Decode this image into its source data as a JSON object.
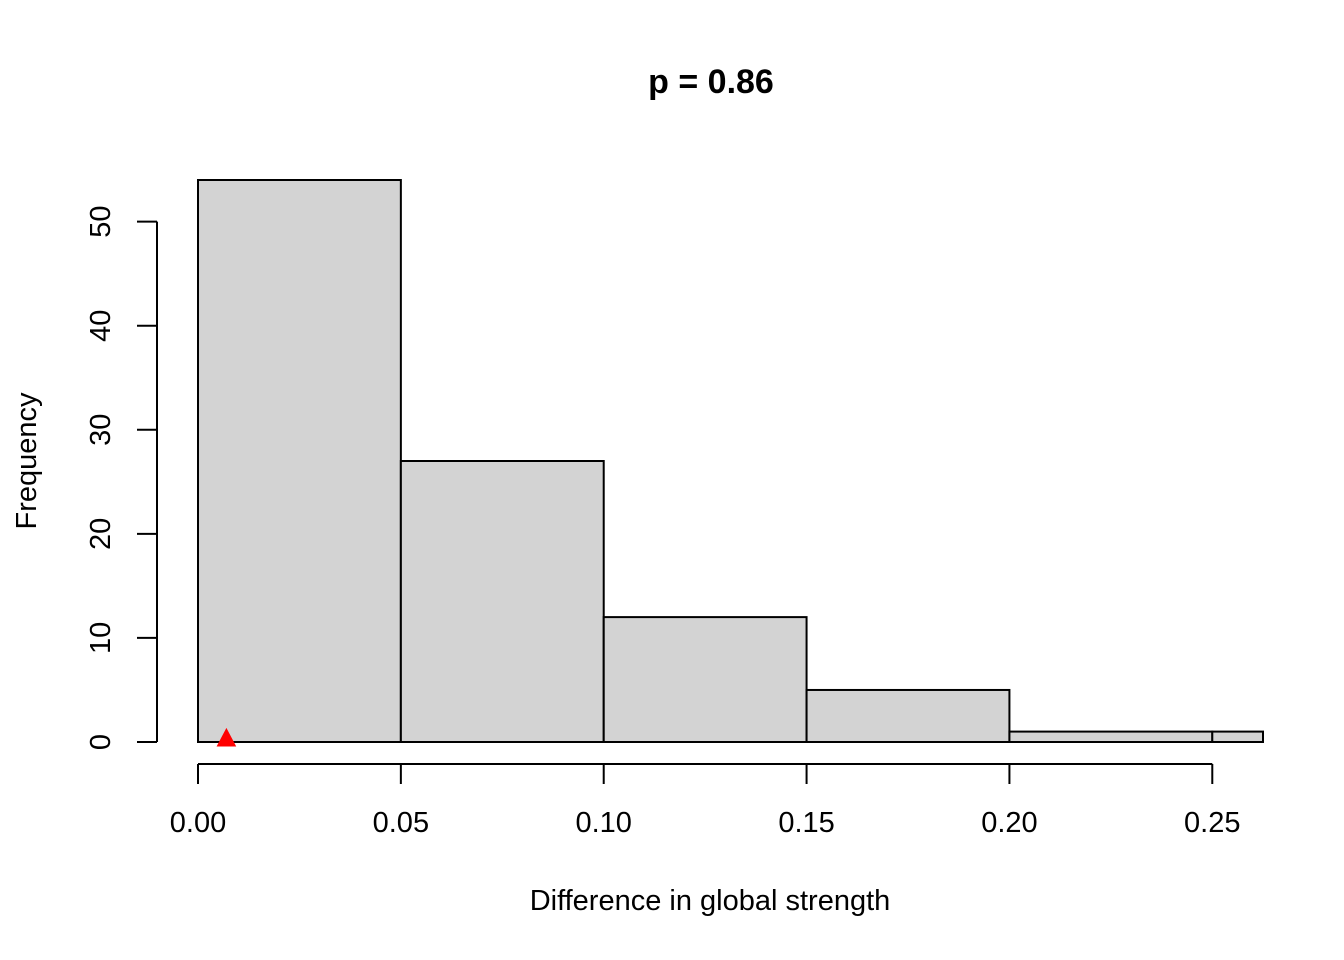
{
  "chart_data": {
    "type": "bar",
    "title": "p = 0.86",
    "xlabel": "Difference in global strength",
    "ylabel": "Frequency",
    "bins": [
      {
        "start": 0.0,
        "end": 0.05,
        "count": 54
      },
      {
        "start": 0.05,
        "end": 0.1,
        "count": 27
      },
      {
        "start": 0.1,
        "end": 0.15,
        "count": 12
      },
      {
        "start": 0.15,
        "end": 0.2,
        "count": 5
      },
      {
        "start": 0.2,
        "end": 0.25,
        "count": 1
      },
      {
        "start": 0.25,
        "end": 0.3,
        "count": 1
      }
    ],
    "xlim": [
      0,
      0.2625
    ],
    "ylim": [
      0,
      54
    ],
    "xticks": [
      0.0,
      0.05,
      0.1,
      0.15,
      0.2,
      0.25
    ],
    "xtick_labels": [
      "0.00",
      "0.05",
      "0.10",
      "0.15",
      "0.20",
      "0.25"
    ],
    "yticks": [
      0,
      10,
      20,
      30,
      40,
      50
    ],
    "ytick_labels": [
      "0",
      "10",
      "20",
      "30",
      "40",
      "50"
    ],
    "observed_marker": {
      "x": 0.007,
      "y": 0,
      "shape": "triangle",
      "color": "#ff0000"
    },
    "bar_fill": "#d3d3d3",
    "bar_stroke": "#000000",
    "grid": false
  }
}
